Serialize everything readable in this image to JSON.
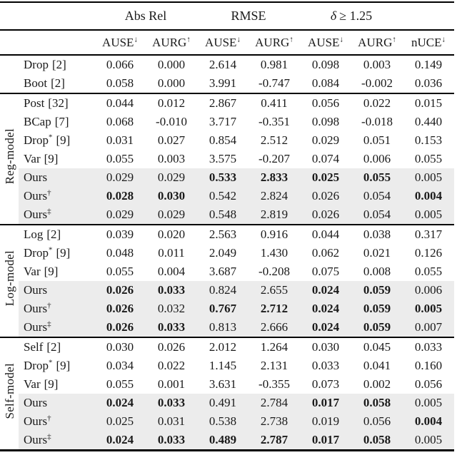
{
  "page": {
    "background": "#ffffff",
    "text_color": "#1a1a1a",
    "highlight_color": "#ececec",
    "rule_color": "#000000"
  },
  "table": {
    "group_headers": [
      {
        "symbol": "",
        "label": "Abs Rel"
      },
      {
        "symbol": "",
        "label": "RMSE"
      },
      {
        "symbol": "δ",
        "label": "≥ 1.25"
      }
    ],
    "metric_headers": [
      {
        "label": "AUSE",
        "arrow": "↓"
      },
      {
        "label": "AURG",
        "arrow": "↑"
      },
      {
        "label": "AUSE",
        "arrow": "↓"
      },
      {
        "label": "AURG",
        "arrow": "↑"
      },
      {
        "label": "AUSE",
        "arrow": "↓"
      },
      {
        "label": "AURG",
        "arrow": "↑"
      },
      {
        "label": "nUCE",
        "arrow": "↓"
      }
    ],
    "sections": [
      {
        "group": "",
        "rows": [
          {
            "label": "Drop",
            "sup": "",
            "ref": "[2]",
            "highlight": false,
            "bold": [],
            "values": [
              "0.066",
              "0.000",
              "2.614",
              "0.981",
              "0.098",
              "0.003",
              "0.149"
            ]
          },
          {
            "label": "Boot",
            "sup": "",
            "ref": "[2]",
            "highlight": false,
            "bold": [],
            "values": [
              "0.058",
              "0.000",
              "3.991",
              "-0.747",
              "0.084",
              "-0.002",
              "0.036"
            ]
          }
        ]
      },
      {
        "group": "Reg-model",
        "rows": [
          {
            "label": "Post",
            "sup": "",
            "ref": "[32]",
            "highlight": false,
            "bold": [],
            "values": [
              "0.044",
              "0.012",
              "2.867",
              "0.411",
              "0.056",
              "0.022",
              "0.015"
            ]
          },
          {
            "label": "BCap",
            "sup": "",
            "ref": "[7]",
            "highlight": false,
            "bold": [],
            "values": [
              "0.068",
              "-0.010",
              "3.717",
              "-0.351",
              "0.098",
              "-0.018",
              "0.440"
            ]
          },
          {
            "label": "Drop",
            "sup": "*",
            "ref": "[9]",
            "highlight": false,
            "bold": [],
            "values": [
              "0.031",
              "0.027",
              "0.854",
              "2.512",
              "0.029",
              "0.051",
              "0.153"
            ]
          },
          {
            "label": "Var",
            "sup": "",
            "ref": "[9]",
            "highlight": false,
            "bold": [],
            "values": [
              "0.055",
              "0.003",
              "3.575",
              "-0.207",
              "0.074",
              "0.006",
              "0.055"
            ]
          },
          {
            "label": "Ours",
            "sup": "",
            "ref": "",
            "highlight": true,
            "bold": [
              2,
              3,
              4,
              5
            ],
            "values": [
              "0.029",
              "0.029",
              "0.533",
              "2.833",
              "0.025",
              "0.055",
              "0.005"
            ]
          },
          {
            "label": "Ours",
            "sup": "†",
            "ref": "",
            "highlight": true,
            "bold": [
              0,
              1,
              6
            ],
            "values": [
              "0.028",
              "0.030",
              "0.542",
              "2.824",
              "0.026",
              "0.054",
              "0.004"
            ]
          },
          {
            "label": "Ours",
            "sup": "‡",
            "ref": "",
            "highlight": true,
            "bold": [],
            "values": [
              "0.029",
              "0.029",
              "0.548",
              "2.819",
              "0.026",
              "0.054",
              "0.005"
            ]
          }
        ]
      },
      {
        "group": "Log-model",
        "rows": [
          {
            "label": "Log",
            "sup": "",
            "ref": "[2]",
            "highlight": false,
            "bold": [],
            "values": [
              "0.039",
              "0.020",
              "2.563",
              "0.916",
              "0.044",
              "0.038",
              "0.317"
            ]
          },
          {
            "label": "Drop",
            "sup": "*",
            "ref": "[9]",
            "highlight": false,
            "bold": [],
            "values": [
              "0.048",
              "0.011",
              "2.049",
              "1.430",
              "0.062",
              "0.021",
              "0.126"
            ]
          },
          {
            "label": "Var",
            "sup": "",
            "ref": "[9]",
            "highlight": false,
            "bold": [],
            "values": [
              "0.055",
              "0.004",
              "3.687",
              "-0.208",
              "0.075",
              "0.008",
              "0.055"
            ]
          },
          {
            "label": "Ours",
            "sup": "",
            "ref": "",
            "highlight": true,
            "bold": [
              0,
              1,
              4,
              5
            ],
            "values": [
              "0.026",
              "0.033",
              "0.824",
              "2.655",
              "0.024",
              "0.059",
              "0.006"
            ]
          },
          {
            "label": "Ours",
            "sup": "†",
            "ref": "",
            "highlight": true,
            "bold": [
              0,
              2,
              3,
              4,
              5,
              6
            ],
            "values": [
              "0.026",
              "0.032",
              "0.767",
              "2.712",
              "0.024",
              "0.059",
              "0.005"
            ]
          },
          {
            "label": "Ours",
            "sup": "‡",
            "ref": "",
            "highlight": true,
            "bold": [
              0,
              1,
              4,
              5
            ],
            "values": [
              "0.026",
              "0.033",
              "0.813",
              "2.666",
              "0.024",
              "0.059",
              "0.007"
            ]
          }
        ]
      },
      {
        "group": "Self-model",
        "rows": [
          {
            "label": "Self",
            "sup": "",
            "ref": "[2]",
            "highlight": false,
            "bold": [],
            "values": [
              "0.030",
              "0.026",
              "2.012",
              "1.264",
              "0.030",
              "0.045",
              "0.033"
            ]
          },
          {
            "label": "Drop",
            "sup": "*",
            "ref": "[9]",
            "highlight": false,
            "bold": [],
            "values": [
              "0.034",
              "0.022",
              "1.145",
              "2.131",
              "0.033",
              "0.041",
              "0.160"
            ]
          },
          {
            "label": "Var",
            "sup": "",
            "ref": "[9]",
            "highlight": false,
            "bold": [],
            "values": [
              "0.055",
              "0.001",
              "3.631",
              "-0.355",
              "0.073",
              "0.002",
              "0.056"
            ]
          },
          {
            "label": "Ours",
            "sup": "",
            "ref": "",
            "highlight": true,
            "bold": [
              0,
              1,
              4,
              5
            ],
            "values": [
              "0.024",
              "0.033",
              "0.491",
              "2.784",
              "0.017",
              "0.058",
              "0.005"
            ]
          },
          {
            "label": "Ours",
            "sup": "†",
            "ref": "",
            "highlight": true,
            "bold": [
              6
            ],
            "values": [
              "0.025",
              "0.031",
              "0.538",
              "2.738",
              "0.019",
              "0.056",
              "0.004"
            ]
          },
          {
            "label": "Ours",
            "sup": "‡",
            "ref": "",
            "highlight": true,
            "bold": [
              0,
              1,
              2,
              3,
              4,
              5
            ],
            "values": [
              "0.024",
              "0.033",
              "0.489",
              "2.787",
              "0.017",
              "0.058",
              "0.005"
            ]
          }
        ]
      }
    ]
  }
}
